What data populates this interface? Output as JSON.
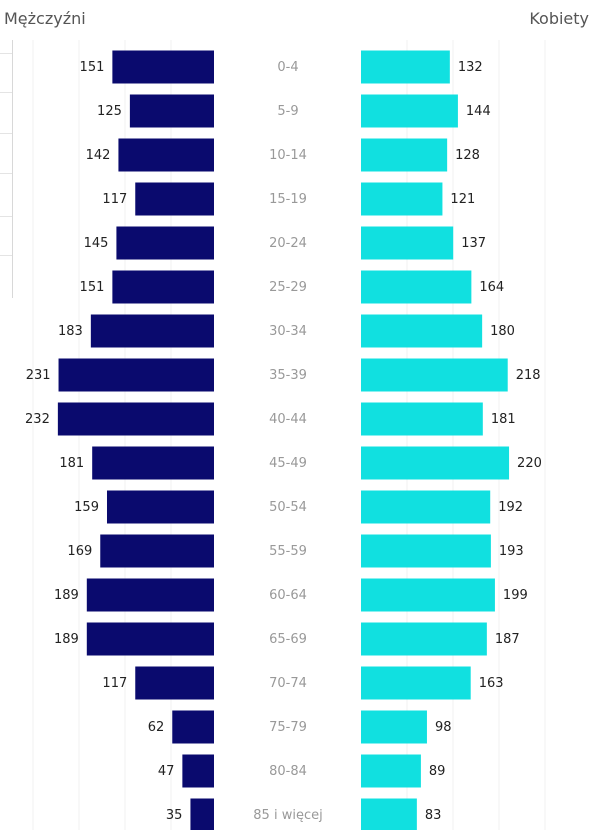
{
  "chart_data": {
    "type": "bar",
    "categories": [
      "0-4",
      "5-9",
      "10-14",
      "15-19",
      "20-24",
      "25-29",
      "30-34",
      "35-39",
      "40-44",
      "45-49",
      "50-54",
      "55-59",
      "60-64",
      "65-69",
      "70-74",
      "75-79",
      "80-84",
      "85 i więcej"
    ],
    "series": [
      {
        "name": "Mężczyźni",
        "values": [
          151,
          125,
          142,
          117,
          145,
          151,
          183,
          231,
          232,
          181,
          159,
          169,
          189,
          189,
          117,
          62,
          47,
          35
        ]
      },
      {
        "name": "Kobiety",
        "values": [
          132,
          144,
          128,
          121,
          137,
          164,
          180,
          218,
          181,
          220,
          192,
          193,
          199,
          187,
          163,
          98,
          89,
          83
        ]
      }
    ],
    "title": "",
    "xlabel": "",
    "ylabel": "",
    "legend": "top",
    "grid": true,
    "colors": {
      "male": "#0a0a6e",
      "female": "#11e0e0"
    }
  }
}
